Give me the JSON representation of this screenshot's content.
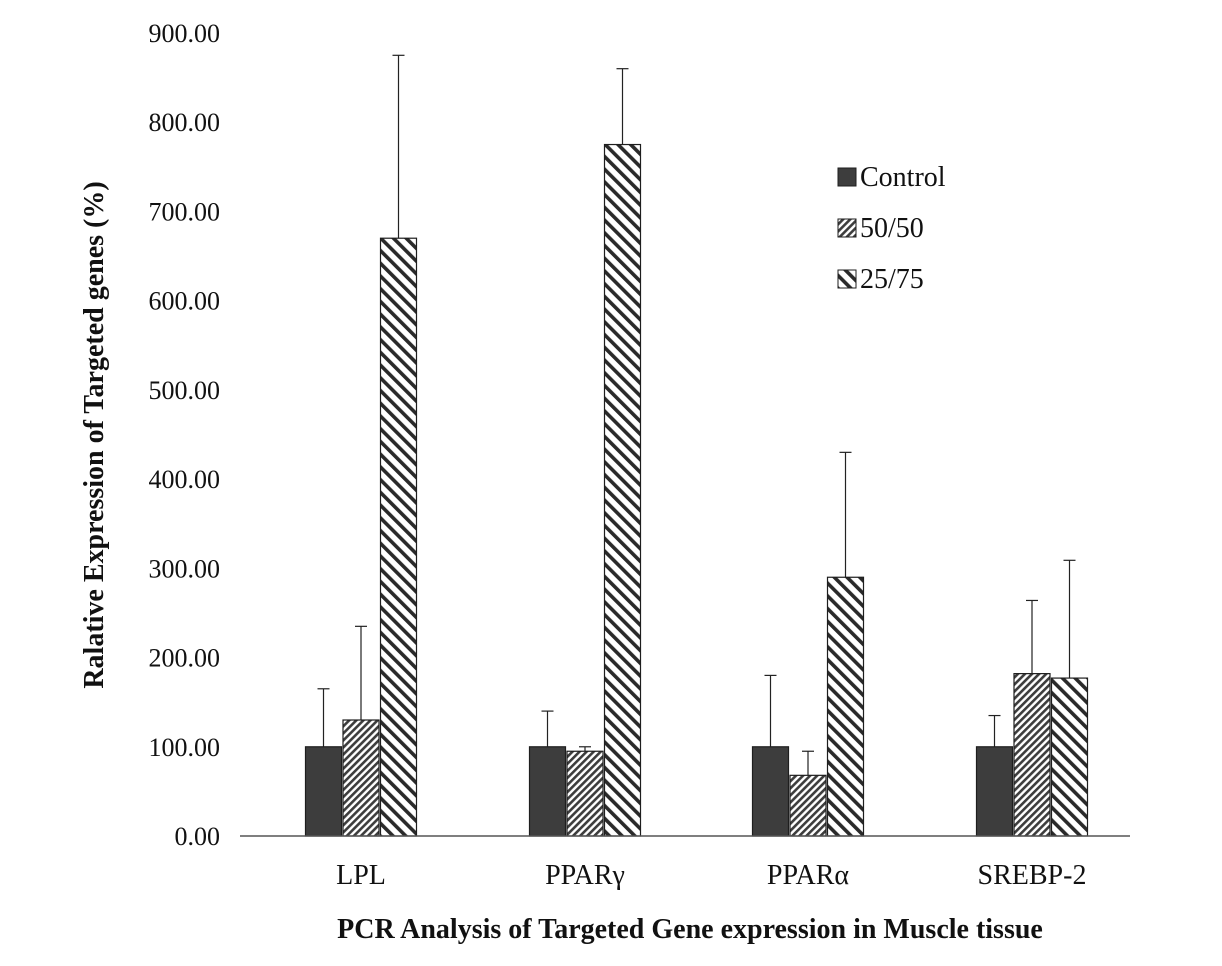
{
  "chart_data": {
    "type": "bar",
    "title": "",
    "xlabel": "PCR Analysis of Targeted  Gene expression in Muscle tissue",
    "ylabel": "Ralative Expression of Targeted genes (%)",
    "ylim": [
      0,
      900
    ],
    "yticks": [
      0,
      100,
      200,
      300,
      400,
      500,
      600,
      700,
      800,
      900
    ],
    "ytick_labels": [
      "0.00",
      "100.00",
      "200.00",
      "300.00",
      "400.00",
      "500.00",
      "600.00",
      "700.00",
      "800.00",
      "900.00"
    ],
    "categories": [
      "LPL",
      "PPARγ",
      "PPARα",
      "SREBP-2"
    ],
    "grid": false,
    "legend_position": "top-right",
    "series": [
      {
        "name": "Control",
        "pattern": "solid",
        "color": "#3d3d3d",
        "values": [
          100,
          100,
          100,
          100
        ],
        "errors": [
          65,
          40,
          80,
          35
        ]
      },
      {
        "name": "50/50",
        "pattern": "dense-diagonal",
        "color": "#3d3d3d",
        "values": [
          130,
          95,
          68,
          182
        ],
        "errors": [
          105,
          5,
          27,
          82
        ]
      },
      {
        "name": "25/75",
        "pattern": "diagonal-stripes",
        "color": "#3d3d3d",
        "values": [
          670,
          775,
          290,
          177
        ],
        "errors": [
          205,
          85,
          140,
          132
        ]
      }
    ]
  }
}
